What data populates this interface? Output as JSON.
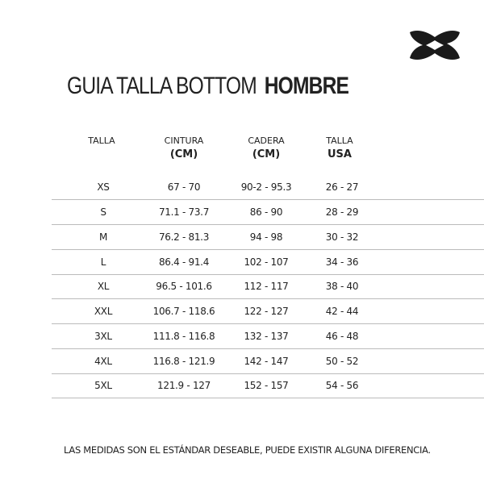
{
  "brand": {
    "logo": "Under Armour",
    "logo_color": "#1a1a1a"
  },
  "title": {
    "light": "GUIA TALLA BOTTOM",
    "bold": "HOMBRE"
  },
  "table": {
    "headers": [
      {
        "top": "TALLA",
        "sub": ""
      },
      {
        "top": "CINTURA",
        "sub": "(CM)"
      },
      {
        "top": "CADERA",
        "sub": "(CM)"
      },
      {
        "top": "TALLA",
        "sub": "USA"
      }
    ],
    "rows": [
      [
        "XS",
        "67 - 70",
        "90-2 - 95.3",
        "26 - 27"
      ],
      [
        "S",
        "71.1 - 73.7",
        "86 - 90",
        "28 - 29"
      ],
      [
        "M",
        "76.2 - 81.3",
        "94 - 98",
        "30 - 32"
      ],
      [
        "L",
        "86.4 - 91.4",
        "102 - 107",
        "34 - 36"
      ],
      [
        "XL",
        "96.5  - 101.6",
        "112 - 117",
        "38 - 40"
      ],
      [
        "XXL",
        "106.7 - 118.6",
        "122 - 127",
        "42 - 44"
      ],
      [
        "3XL",
        "111.8 - 116.8",
        "132 - 137",
        "46 - 48"
      ],
      [
        "4XL",
        "116.8 - 121.9",
        "142 - 147",
        "50 - 52"
      ],
      [
        "5XL",
        "121.9 - 127",
        "152 - 157",
        "54 - 56"
      ]
    ]
  },
  "note": "LAS MEDIDAS SON EL ESTÁNDAR DESEABLE, PUEDE EXISTIR ALGUNA DIFERENCIA."
}
